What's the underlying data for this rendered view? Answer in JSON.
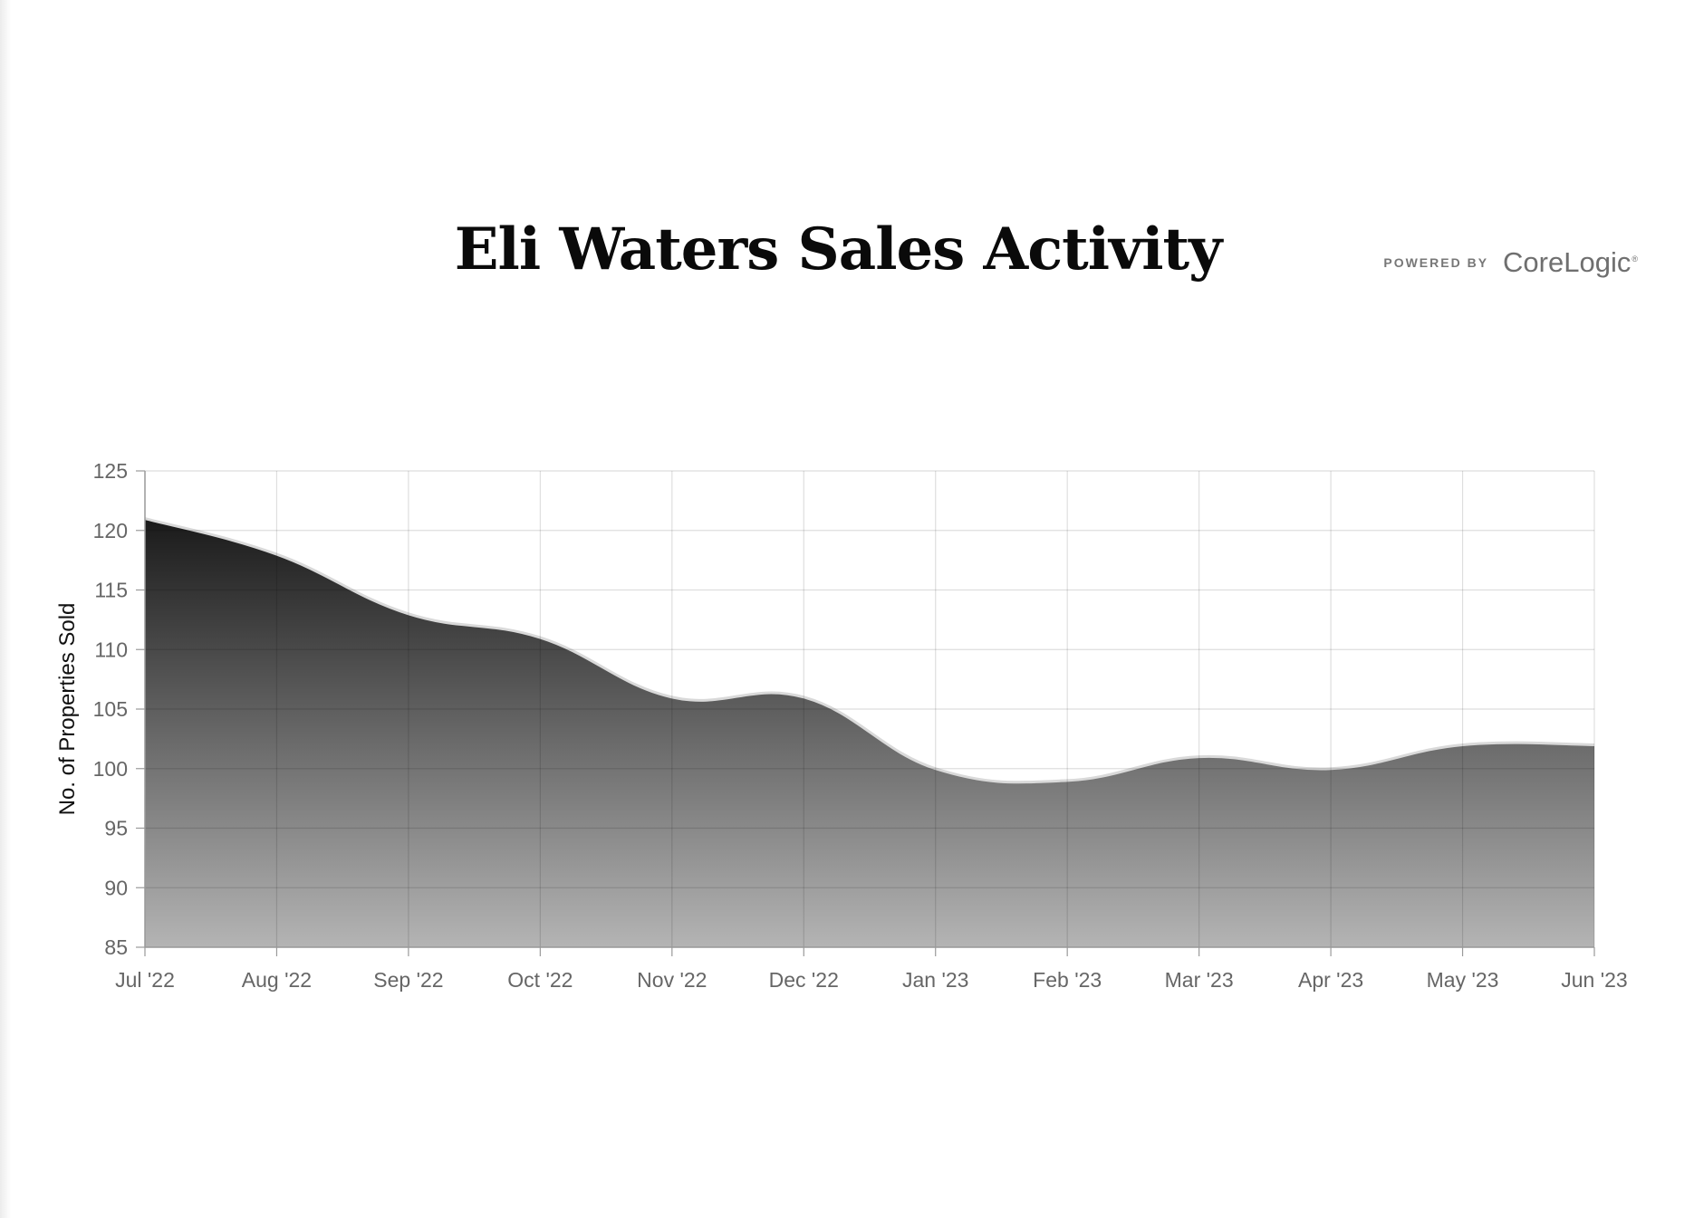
{
  "page": {
    "title": "Eli Waters Sales Activity",
    "powered_by": "POWERED BY",
    "brand": "CoreLogic",
    "brand_mark": "®"
  },
  "chart_data": {
    "type": "area",
    "title": "Eli Waters Sales Activity",
    "xlabel": "",
    "ylabel": "No. of Properties Sold",
    "categories": [
      "Jul '22",
      "Aug '22",
      "Sep '22",
      "Oct '22",
      "Nov '22",
      "Dec '22",
      "Jan '23",
      "Feb '23",
      "Mar '23",
      "Apr '23",
      "May '23",
      "Jun '23"
    ],
    "series": [
      {
        "values": [
          121,
          118,
          113,
          111,
          106,
          106,
          100,
          99,
          101,
          100,
          102,
          102
        ]
      }
    ],
    "ylim": [
      85,
      125
    ],
    "yticks": [
      85,
      90,
      95,
      100,
      105,
      110,
      115,
      120,
      125
    ],
    "grid": true,
    "legend": "none",
    "colors": {
      "fill_top": "#1a1a1a",
      "fill_bottom": "#b4b4b4",
      "line": "#d9d9d9",
      "grid": "#e0e0e0",
      "axis": "#9a9a9a"
    }
  }
}
